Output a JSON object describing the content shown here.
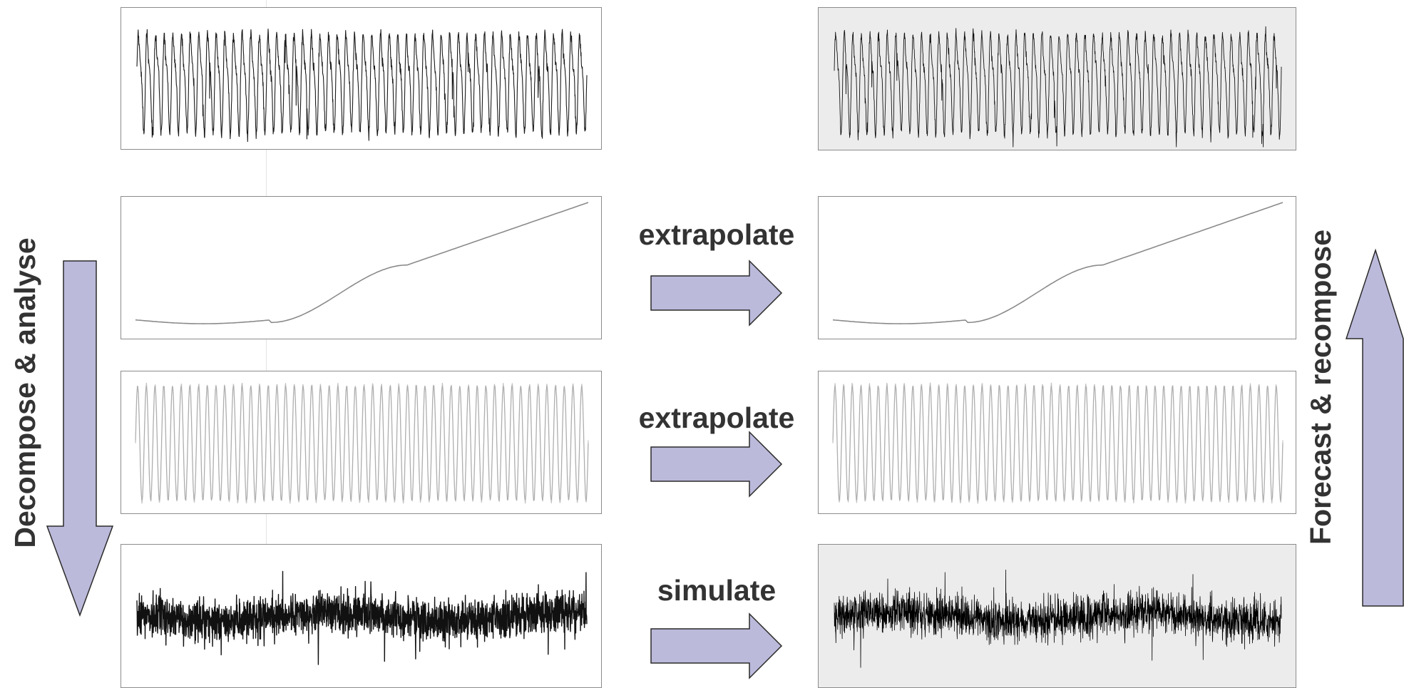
{
  "left_flow": {
    "label": "Decompose & analyse",
    "direction": "down"
  },
  "right_flow": {
    "label": "Forecast & recompose",
    "direction": "up"
  },
  "colors": {
    "arrow_fill": "#bcbadb",
    "arrow_stroke": "#2a2a2a",
    "panel_shaded": "#ececec",
    "panel_border": "#8c8c8c",
    "text": "#333333"
  },
  "rows": [
    {
      "component": "series",
      "action": ""
    },
    {
      "component": "trend",
      "action": "extrapolate"
    },
    {
      "component": "seasonal",
      "action": "extrapolate"
    },
    {
      "component": "residual",
      "action": "simulate"
    }
  ]
}
